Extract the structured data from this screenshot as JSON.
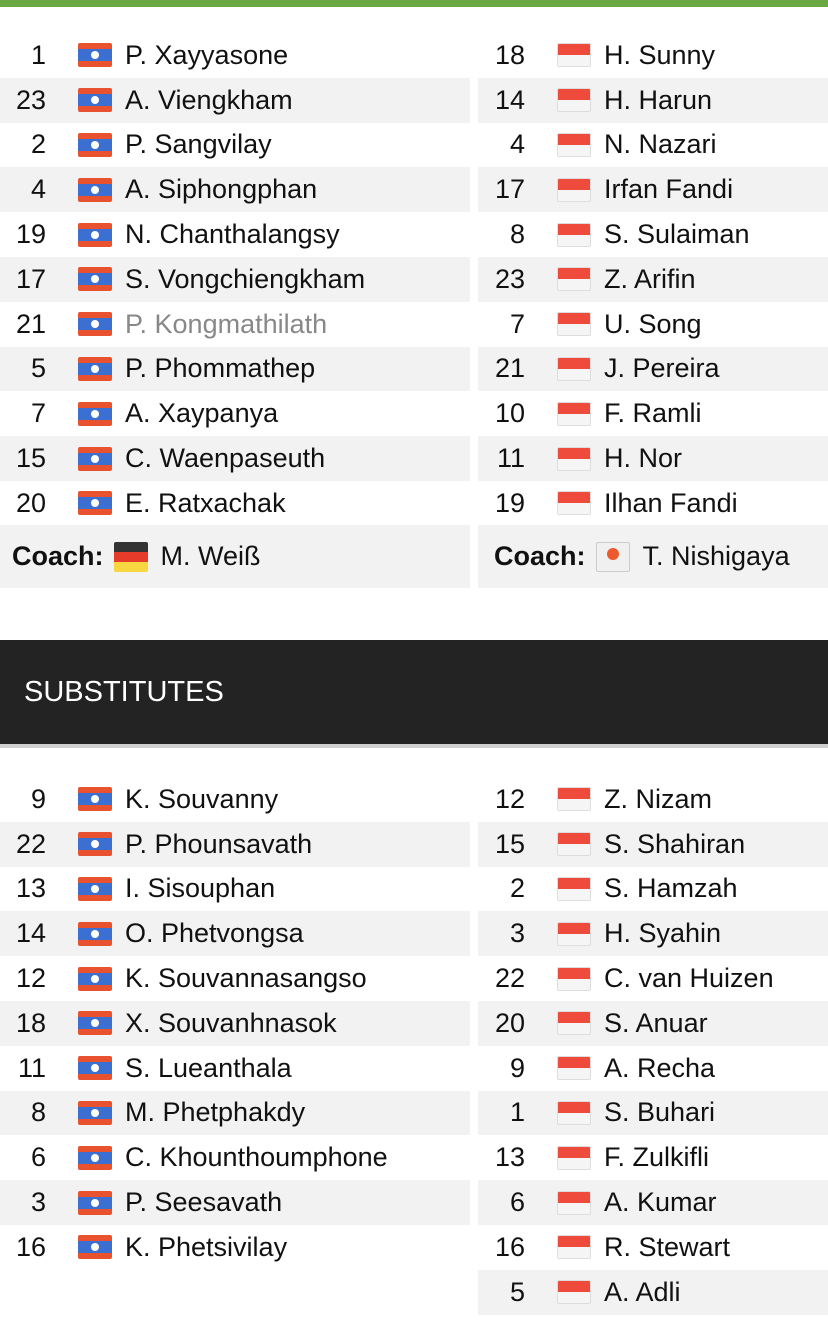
{
  "colors": {
    "accent": "#6aa843",
    "header_bg": "#232323",
    "row_alt": "#f2f2f2"
  },
  "lineups": {
    "home": [
      [
        "1",
        "P. Xayyasone"
      ],
      [
        "23",
        "A. Viengkham"
      ],
      [
        "2",
        "P. Sangvilay"
      ],
      [
        "4",
        "A. Siphongphan"
      ],
      [
        "19",
        "N. Chanthalangsy"
      ],
      [
        "17",
        "S. Vongchiengkham"
      ],
      [
        "21",
        "P. Kongmathilath"
      ],
      [
        "5",
        "P. Phommathep"
      ],
      [
        "7",
        "A. Xaypanya"
      ],
      [
        "15",
        "C. Waenpaseuth"
      ],
      [
        "20",
        "E. Ratxachak"
      ]
    ],
    "away": [
      [
        "18",
        "H. Sunny"
      ],
      [
        "14",
        "H. Harun"
      ],
      [
        "4",
        "N. Nazari"
      ],
      [
        "17",
        "Irfan Fandi"
      ],
      [
        "8",
        "S. Sulaiman"
      ],
      [
        "23",
        "Z. Arifin"
      ],
      [
        "7",
        "U. Song"
      ],
      [
        "21",
        "J. Pereira"
      ],
      [
        "10",
        "F. Ramli"
      ],
      [
        "11",
        "H. Nor"
      ],
      [
        "19",
        "Ilhan Fandi"
      ]
    ],
    "muted_home_index": 6
  },
  "coach": {
    "label": "Coach:",
    "home": "M. Weiß",
    "away": "T. Nishigaya",
    "home_flag": "germany-flag",
    "away_flag": "japan-flag"
  },
  "substitutes": {
    "title": "SUBSTITUTES",
    "home": [
      [
        "9",
        "K. Souvanny"
      ],
      [
        "22",
        "P. Phounsavath"
      ],
      [
        "13",
        "I. Sisouphan"
      ],
      [
        "14",
        "O. Phetvongsa"
      ],
      [
        "12",
        "K. Souvannasangso"
      ],
      [
        "18",
        "X. Souvanhnasok"
      ],
      [
        "11",
        "S. Lueanthala"
      ],
      [
        "8",
        "M. Phetphakdy"
      ],
      [
        "6",
        "C. Khounthoumphone"
      ],
      [
        "3",
        "P. Seesavath"
      ],
      [
        "16",
        "K. Phetsivilay"
      ]
    ],
    "away": [
      [
        "12",
        "Z. Nizam"
      ],
      [
        "15",
        "S. Shahiran"
      ],
      [
        "2",
        "S. Hamzah"
      ],
      [
        "3",
        "H. Syahin"
      ],
      [
        "22",
        "C. van Huizen"
      ],
      [
        "20",
        "S. Anuar"
      ],
      [
        "9",
        "A. Recha"
      ],
      [
        "1",
        "S. Buhari"
      ],
      [
        "13",
        "F. Zulkifli"
      ],
      [
        "6",
        "A. Kumar"
      ],
      [
        "16",
        "R. Stewart"
      ],
      [
        "5",
        "A. Adli"
      ]
    ]
  },
  "flags": {
    "home": "laos-flag",
    "away": "singapore-flag"
  }
}
